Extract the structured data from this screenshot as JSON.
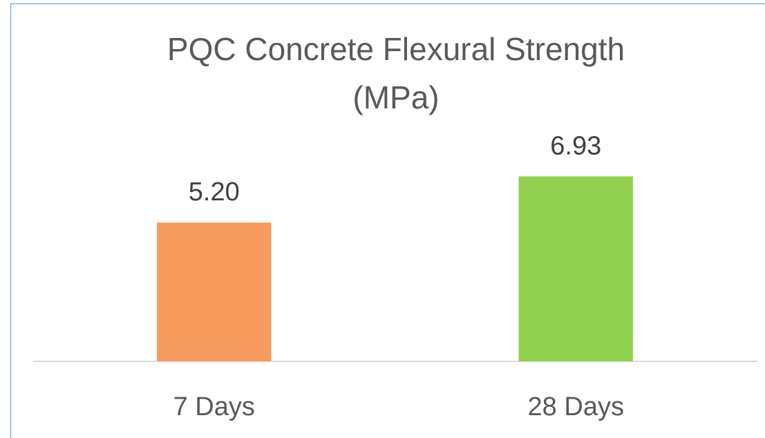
{
  "chart_data": {
    "type": "bar",
    "title": "PQC Concrete Flexural Strength (MPa)",
    "categories": [
      "7 Days",
      "28 Days"
    ],
    "values": [
      5.2,
      6.93
    ],
    "value_labels": [
      "5.20",
      "6.93"
    ],
    "colors": [
      "#f79a5d",
      "#92d050"
    ],
    "ylim": [
      0,
      8
    ],
    "grid": false
  }
}
